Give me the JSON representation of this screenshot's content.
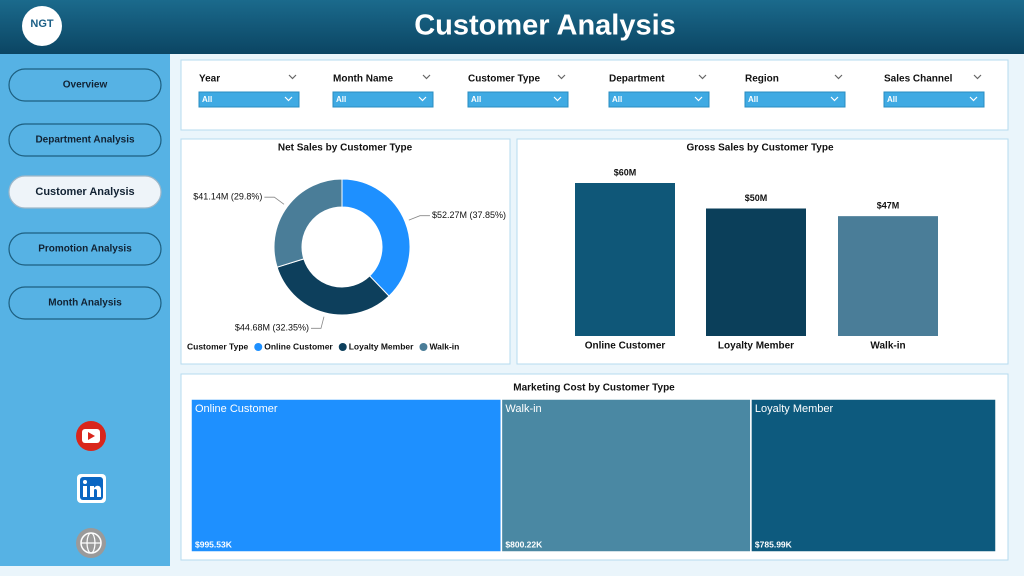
{
  "header": {
    "title": "Customer Analysis",
    "logo": "NGT"
  },
  "nav": {
    "items": [
      "Overview",
      "Department Analysis",
      "Customer Analysis",
      "Promotion Analysis",
      "Month Analysis"
    ],
    "active": 2
  },
  "filters": [
    {
      "label": "Year",
      "value": "All"
    },
    {
      "label": "Month Name",
      "value": "All"
    },
    {
      "label": "Customer Type",
      "value": "All"
    },
    {
      "label": "Department",
      "value": "All"
    },
    {
      "label": "Region",
      "value": "All"
    },
    {
      "label": "Sales Channel",
      "value": "All"
    }
  ],
  "charts": [
    {
      "type": "pie",
      "title": "Net Sales by Customer Type",
      "legend_title": "Customer Type",
      "categories": [
        "Online Customer",
        "Loyalty Member",
        "Walk-in"
      ],
      "values": [
        37.85,
        32.35,
        29.8
      ],
      "value_labels": [
        "$52.27M (37.85%)",
        "$44.68M (32.35%)",
        "$41.14M (29.8%)"
      ],
      "colors": [
        "#1e90ff",
        "#0d3f5c",
        "#4a7d98"
      ]
    },
    {
      "type": "bar",
      "title": "Gross Sales by Customer Type",
      "categories": [
        "Online Customer",
        "Loyalty Member",
        "Walk-in"
      ],
      "values": [
        60,
        50,
        47
      ],
      "value_labels": [
        "$60M",
        "$50M",
        "$47M"
      ],
      "colors": [
        "#0f5778",
        "#0b3f5a",
        "#4a7d98"
      ]
    },
    {
      "type": "treemap",
      "title": "Marketing Cost by Customer Type",
      "categories": [
        "Online Customer",
        "Walk-in",
        "Loyalty Member"
      ],
      "values": [
        995.53,
        800.22,
        785.99
      ],
      "value_labels": [
        "$995.53K",
        "$800.22K",
        "$785.99K"
      ],
      "colors": [
        "#1e90ff",
        "#4a88a3",
        "#0d5a7e"
      ]
    }
  ]
}
